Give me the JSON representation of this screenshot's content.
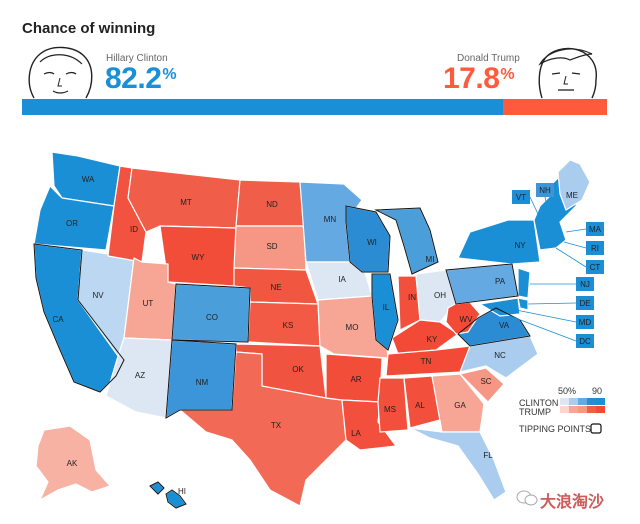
{
  "header": {
    "title": "Chance of winning"
  },
  "candidates": {
    "clinton": {
      "name": "Hillary Clinton",
      "pct": "82.2",
      "sign": "%",
      "color": "#1a8fd6",
      "share": 0.822
    },
    "trump": {
      "name": "Donald Trump",
      "pct": "17.8",
      "sign": "%",
      "color": "#ff5a3c",
      "share": 0.178
    }
  },
  "legend": {
    "pct_low": "50%",
    "pct_high": "90",
    "clinton_label": "CLINTON",
    "trump_label": "TRUMP",
    "tipping_label": "TIPPING POINTS"
  },
  "states": {
    "WA": "WA",
    "OR": "OR",
    "CA": "CA",
    "NV": "NV",
    "ID": "ID",
    "MT": "MT",
    "WY": "WY",
    "UT": "UT",
    "AZ": "AZ",
    "CO": "CO",
    "NM": "NM",
    "ND": "ND",
    "SD": "SD",
    "NE": "NE",
    "KS": "KS",
    "OK": "OK",
    "TX": "TX",
    "MN": "MN",
    "IA": "IA",
    "MO": "MO",
    "AR": "AR",
    "LA": "LA",
    "WI": "WI",
    "IL": "IL",
    "MI": "MI",
    "IN": "IN",
    "OH": "OH",
    "KY": "KY",
    "TN": "TN",
    "MS": "MS",
    "AL": "AL",
    "GA": "GA",
    "FL": "FL",
    "SC": "SC",
    "NC": "NC",
    "VA": "VA",
    "WV": "WV",
    "PA": "PA",
    "NY": "NY",
    "ME": "ME",
    "AK": "AK",
    "HI": "HI",
    "VT": "VT",
    "NH": "NH",
    "MA": "MA",
    "RI": "RI",
    "CT": "CT",
    "NJ": "NJ",
    "DE": "DE",
    "MD": "MD",
    "DC": "DC"
  },
  "watermark": "大浪淘沙"
}
